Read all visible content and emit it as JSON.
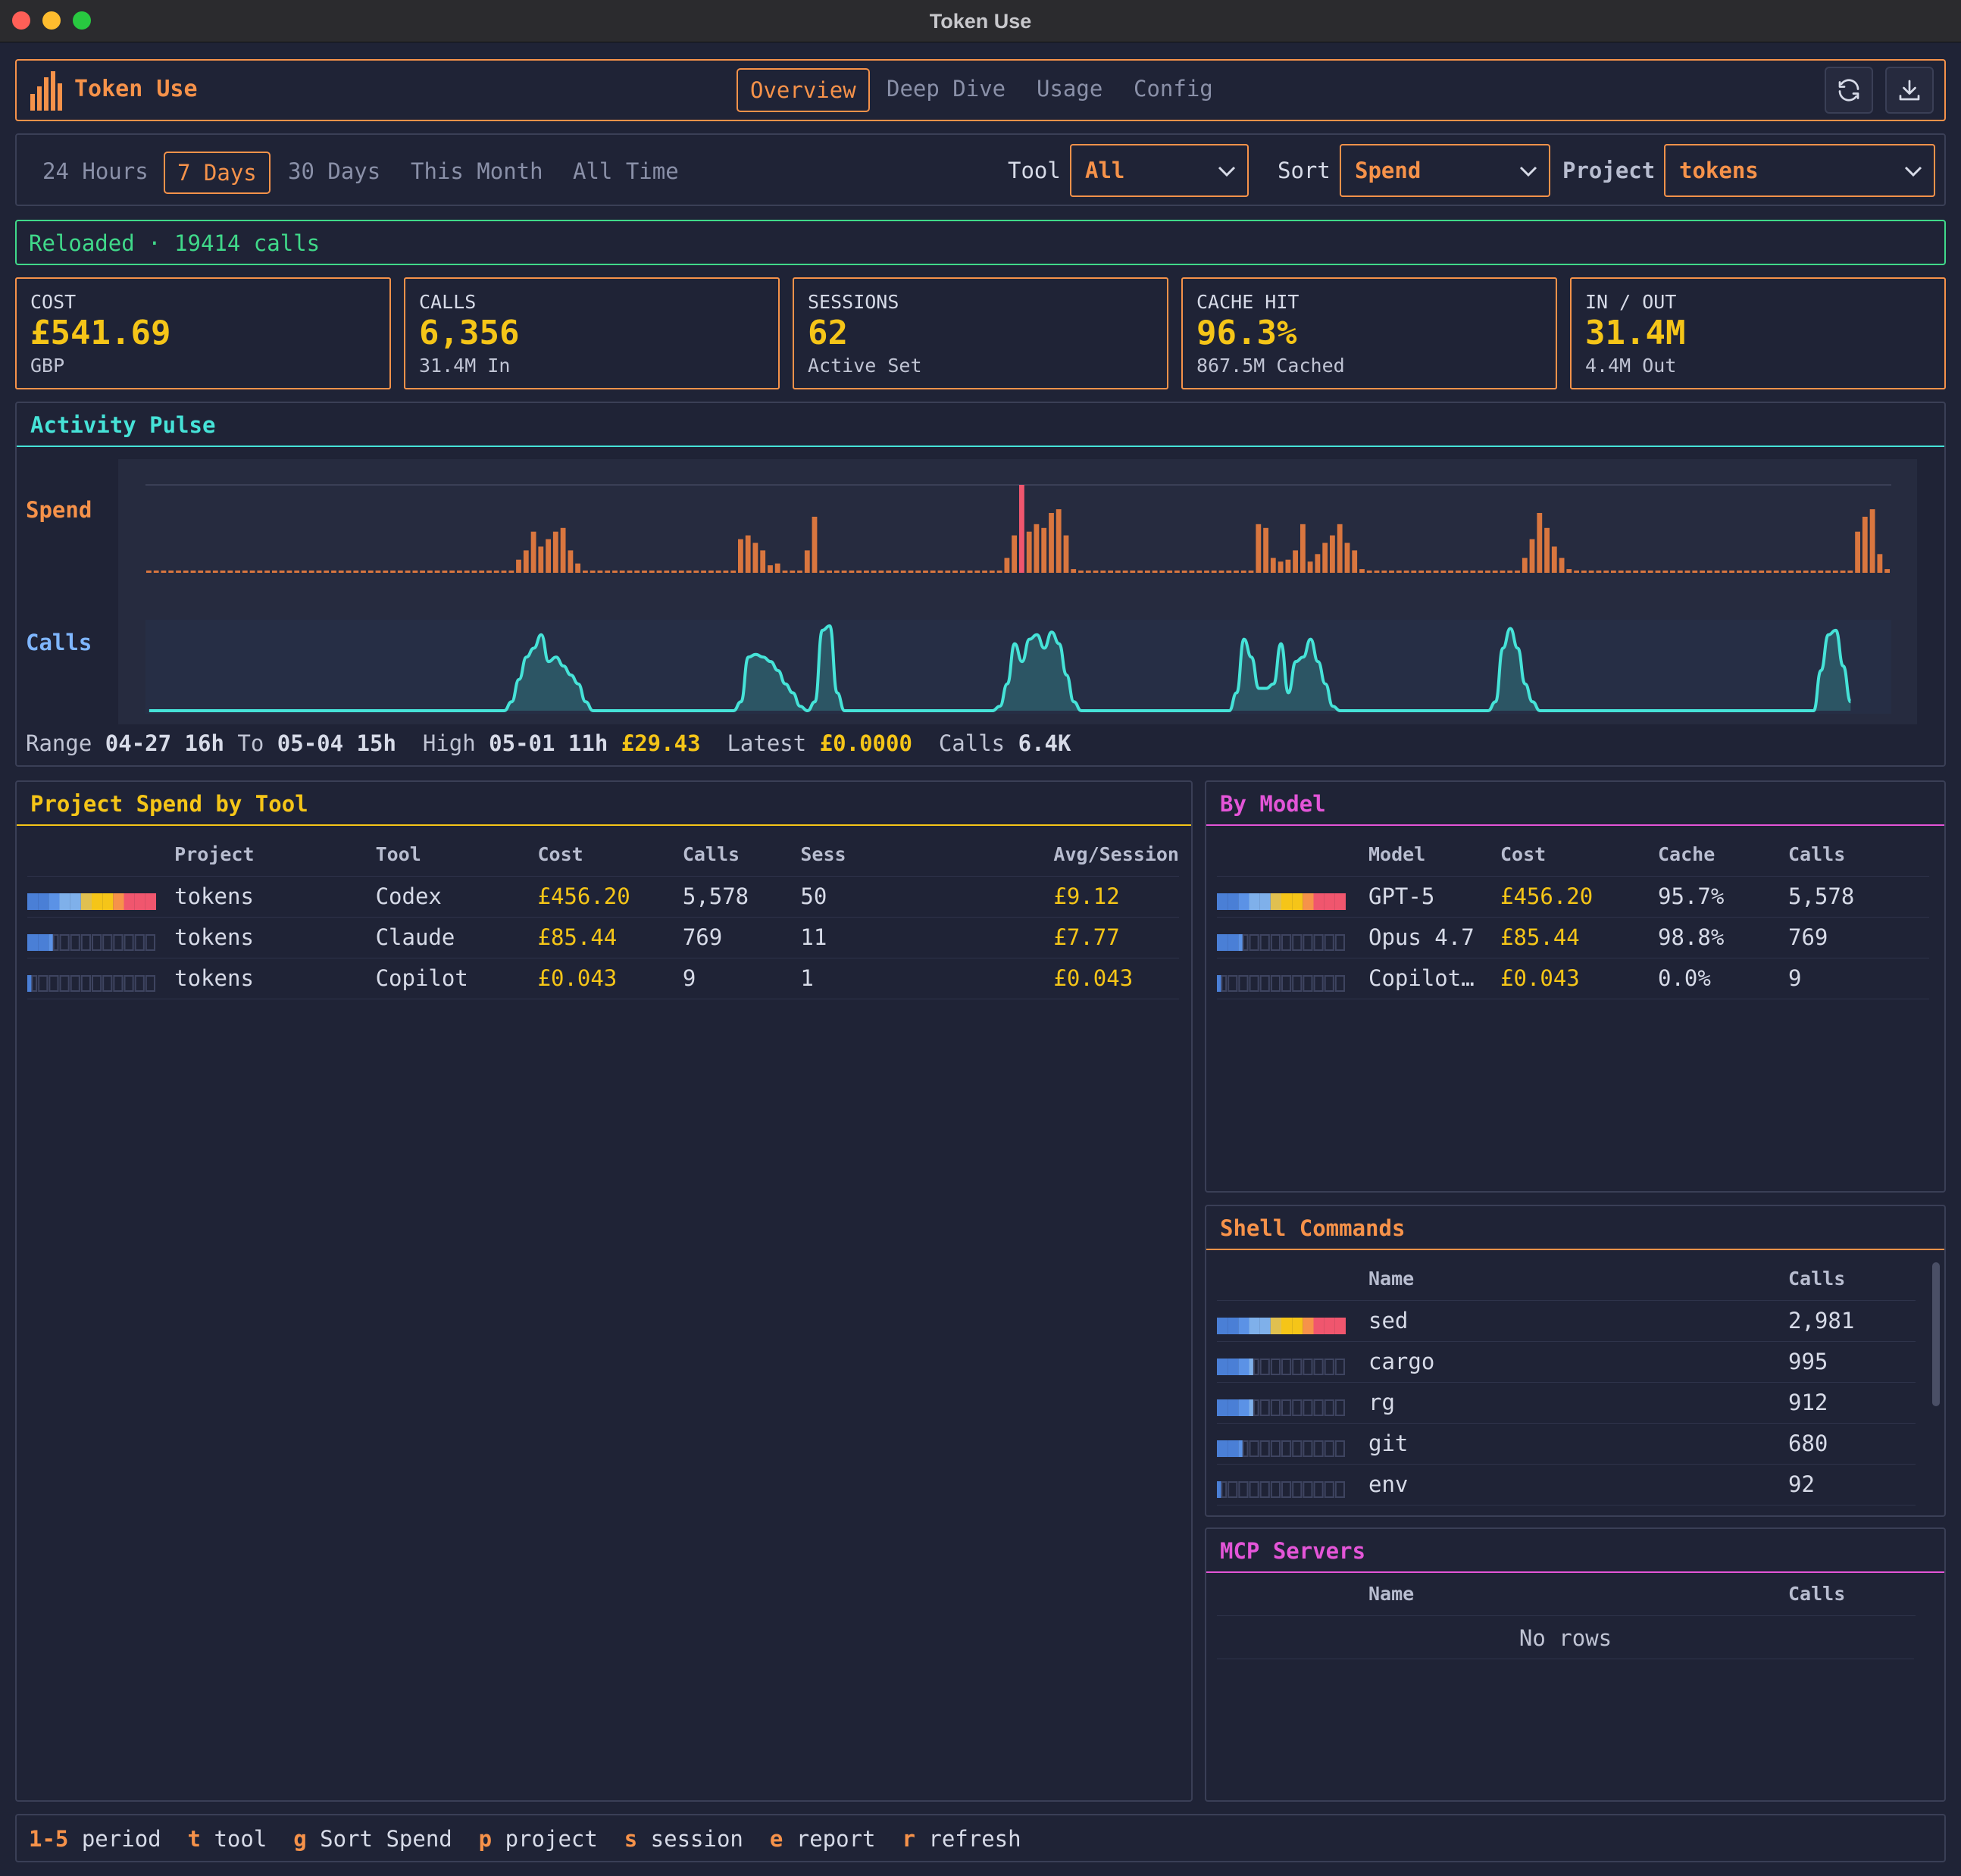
{
  "window": {
    "title": "Token Use"
  },
  "header": {
    "app_name": "Token Use",
    "tabs": [
      {
        "label": "Overview",
        "active": true
      },
      {
        "label": "Deep Dive"
      },
      {
        "label": "Usage"
      },
      {
        "label": "Config"
      }
    ],
    "actions": [
      "refresh-icon",
      "download-icon"
    ]
  },
  "filters": {
    "periods": [
      {
        "label": "24 Hours"
      },
      {
        "label": "7 Days",
        "active": true
      },
      {
        "label": "30 Days"
      },
      {
        "label": "This Month"
      },
      {
        "label": "All Time"
      }
    ],
    "tool_label": "Tool",
    "tool_value": "All",
    "sort_label": "Sort",
    "sort_value": "Spend",
    "project_label": "Project",
    "project_value": "tokens"
  },
  "status": "Reloaded · 19414 calls",
  "stats": [
    {
      "label": "COST",
      "value": "£541.69",
      "sub": "GBP"
    },
    {
      "label": "CALLS",
      "value": "6,356",
      "sub": "31.4M In"
    },
    {
      "label": "SESSIONS",
      "value": "62",
      "sub": "Active Set"
    },
    {
      "label": "CACHE HIT",
      "value": "96.3%",
      "sub": "867.5M Cached"
    },
    {
      "label": "IN / OUT",
      "value": "31.4M",
      "sub": "4.4M Out"
    }
  ],
  "activity": {
    "title": "Activity Pulse",
    "spend_label": "Spend",
    "calls_label": "Calls",
    "range_label": "Range",
    "range_from": "04-27 16h",
    "to_label": "To",
    "range_to": "05-04 15h",
    "high_label": "High",
    "high_time": "05-01 11h",
    "high_value": "£29.43",
    "latest_label": "Latest",
    "latest_value": "£0.0000",
    "calls_total_label": "Calls",
    "calls_total": "6.4K"
  },
  "chart_data": {
    "type": "bar",
    "series": [
      {
        "name": "Spend",
        "values": [
          0,
          0,
          0,
          0,
          0,
          0,
          0,
          0,
          0,
          0,
          0,
          0,
          0,
          0,
          0,
          0,
          0,
          0,
          0,
          0,
          0,
          0,
          0,
          0,
          0,
          0,
          0,
          0,
          0,
          0,
          0,
          0,
          0,
          0,
          0,
          0,
          0,
          0,
          0,
          0,
          0,
          0,
          0,
          0,
          0,
          0,
          0,
          0,
          0,
          0.5,
          3.5,
          6,
          11,
          7,
          9,
          11,
          12,
          6,
          2.5,
          0,
          0,
          0,
          0,
          0,
          0,
          0,
          0,
          0,
          0,
          0,
          0,
          0,
          0,
          0,
          0,
          0,
          0,
          0,
          0,
          0,
          9,
          10,
          8,
          6,
          2,
          2.5,
          0,
          0,
          0,
          6,
          15,
          0,
          0,
          0,
          0,
          0,
          0,
          0,
          0,
          0,
          0,
          0,
          0,
          0,
          0,
          0,
          0,
          0,
          0,
          0,
          0,
          0,
          0,
          0,
          0,
          0,
          4,
          10,
          23.5,
          11,
          13,
          12,
          16,
          17,
          10,
          1,
          0,
          0,
          0,
          0,
          0,
          0,
          0,
          0,
          0,
          0,
          0,
          0,
          0,
          0,
          0,
          0,
          0,
          0,
          0,
          0,
          0,
          0,
          0,
          0,
          13,
          12,
          4,
          3,
          3.5,
          6,
          13,
          3,
          5,
          8,
          10,
          13,
          8,
          6,
          1,
          0,
          0,
          0,
          0,
          0,
          0,
          0,
          0,
          0,
          0,
          0,
          0,
          0,
          0,
          0,
          0,
          0,
          0,
          0,
          0,
          0,
          4,
          9,
          16,
          12,
          7,
          4,
          1,
          0,
          0,
          0,
          0,
          0,
          0,
          0,
          0,
          0,
          0,
          0,
          0,
          0,
          0,
          0,
          0,
          0,
          0,
          0,
          0,
          0,
          0,
          0,
          0,
          0,
          0,
          0,
          0,
          0,
          0,
          0,
          0,
          0,
          0,
          0,
          0,
          0,
          0,
          11,
          15,
          17,
          5,
          1
        ]
      },
      {
        "name": "Calls",
        "values": [
          0,
          0,
          0,
          0,
          0,
          0,
          0,
          0,
          0,
          0,
          0,
          0,
          0,
          0,
          0,
          0,
          0,
          0,
          0,
          0,
          0,
          0,
          0,
          0,
          0,
          0,
          0,
          0,
          0,
          0,
          0,
          0,
          0,
          0,
          0,
          0,
          0,
          0,
          0,
          0,
          0,
          0,
          0,
          0,
          0,
          0,
          0,
          0,
          0,
          0.1,
          0.35,
          0.6,
          0.7,
          0.85,
          0.55,
          0.6,
          0.5,
          0.4,
          0.3,
          0.1,
          0,
          0,
          0,
          0,
          0,
          0,
          0,
          0,
          0,
          0,
          0,
          0,
          0,
          0,
          0,
          0,
          0,
          0,
          0,
          0,
          0.1,
          0.6,
          0.63,
          0.6,
          0.55,
          0.45,
          0.3,
          0.2,
          0.05,
          0,
          0.1,
          0.9,
          0.95,
          0.2,
          0,
          0,
          0,
          0,
          0,
          0,
          0,
          0,
          0,
          0,
          0,
          0,
          0,
          0,
          0,
          0,
          0,
          0,
          0,
          0,
          0,
          0.05,
          0.3,
          0.75,
          0.55,
          0.8,
          0.85,
          0.7,
          0.88,
          0.75,
          0.4,
          0.1,
          0,
          0,
          0,
          0,
          0,
          0,
          0,
          0,
          0,
          0,
          0,
          0,
          0,
          0,
          0,
          0,
          0,
          0,
          0,
          0,
          0,
          0.2,
          0.8,
          0.6,
          0.25,
          0.25,
          0.3,
          0.75,
          0.2,
          0.55,
          0.6,
          0.8,
          0.55,
          0.3,
          0.05,
          0,
          0,
          0,
          0,
          0,
          0,
          0,
          0,
          0,
          0,
          0,
          0,
          0,
          0,
          0,
          0,
          0,
          0,
          0,
          0,
          0,
          0.1,
          0.7,
          0.92,
          0.7,
          0.3,
          0.1,
          0,
          0,
          0,
          0,
          0,
          0,
          0,
          0,
          0,
          0,
          0,
          0,
          0,
          0,
          0,
          0,
          0,
          0,
          0,
          0,
          0,
          0,
          0,
          0,
          0,
          0,
          0,
          0,
          0,
          0,
          0,
          0,
          0,
          0,
          0,
          0,
          0,
          0,
          0.45,
          0.85,
          0.9,
          0.5,
          0.1
        ]
      }
    ],
    "colors": {
      "spend": "#d9763f",
      "spend_high": "#f0566e",
      "calls": "#46e3d8"
    }
  },
  "project_spend": {
    "title": "Project Spend by Tool",
    "columns": [
      "Project",
      "Tool",
      "Cost",
      "Calls",
      "Sess",
      "Avg/Session"
    ],
    "rows": [
      {
        "share": 1.0,
        "project": "tokens",
        "tool": "Codex",
        "cost": "£456.20",
        "calls": "5,578",
        "sess": "50",
        "avg": "£9.12"
      },
      {
        "share": 0.19,
        "project": "tokens",
        "tool": "Claude",
        "cost": "£85.44",
        "calls": "769",
        "sess": "11",
        "avg": "£7.77"
      },
      {
        "share": 0.01,
        "project": "tokens",
        "tool": "Copilot",
        "cost": "£0.043",
        "calls": "9",
        "sess": "1",
        "avg": "£0.043"
      }
    ]
  },
  "by_model": {
    "title": "By Model",
    "columns": [
      "Model",
      "Cost",
      "Cache",
      "Calls"
    ],
    "rows": [
      {
        "share": 1.0,
        "model": "GPT-5",
        "cost": "£456.20",
        "cache": "95.7%",
        "calls": "5,578"
      },
      {
        "share": 0.19,
        "model": "Opus 4.7",
        "cost": "£85.44",
        "cache": "98.8%",
        "calls": "769"
      },
      {
        "share": 0.01,
        "model": "Copilot…",
        "cost": "£0.043",
        "cache": "0.0%",
        "calls": "9"
      }
    ]
  },
  "shell_commands": {
    "title": "Shell Commands",
    "columns": [
      "Name",
      "Calls"
    ],
    "rows": [
      {
        "share": 1.0,
        "name": "sed",
        "calls": "2,981"
      },
      {
        "share": 0.33,
        "name": "cargo",
        "calls": "995"
      },
      {
        "share": 0.31,
        "name": "rg",
        "calls": "912"
      },
      {
        "share": 0.23,
        "name": "git",
        "calls": "680"
      },
      {
        "share": 0.03,
        "name": "env",
        "calls": "92"
      }
    ]
  },
  "mcp_servers": {
    "title": "MCP Servers",
    "columns": [
      "Name",
      "Calls"
    ],
    "empty": "No rows"
  },
  "footer": [
    {
      "key": "1-5",
      "label": "period"
    },
    {
      "key": "t",
      "label": "tool"
    },
    {
      "key": "g",
      "label": "Sort Spend"
    },
    {
      "key": "p",
      "label": "project"
    },
    {
      "key": "s",
      "label": "session"
    },
    {
      "key": "e",
      "label": "report"
    },
    {
      "key": "r",
      "label": "refresh"
    }
  ]
}
